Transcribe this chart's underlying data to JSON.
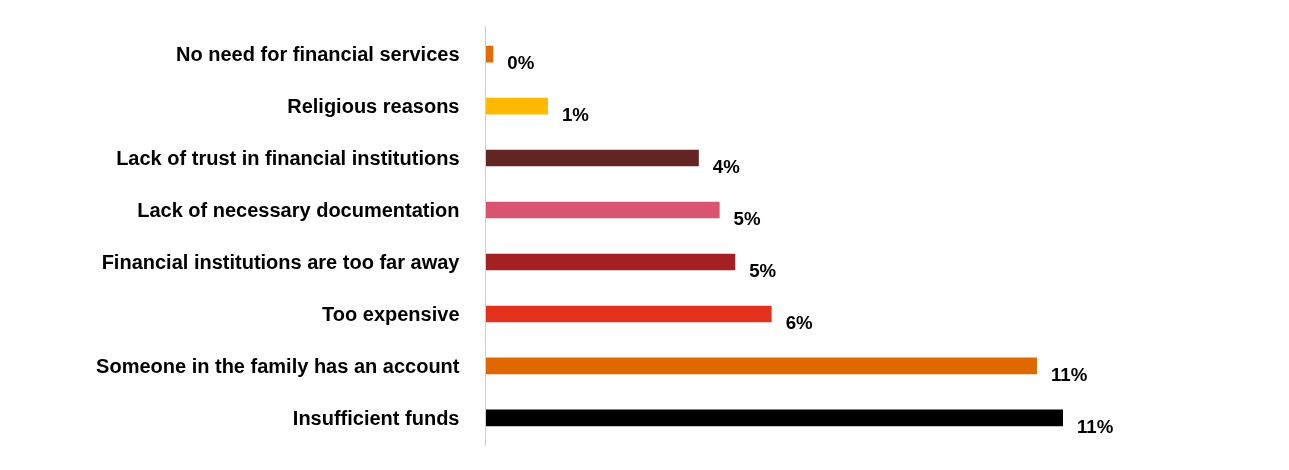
{
  "chart_data": {
    "type": "bar",
    "orientation": "horizontal",
    "categories": [
      "No need for financial services",
      "Religious reasons",
      "Lack of trust in financial institutions",
      "Lack of necessary documentation",
      "Financial institutions are too far away",
      "Too expensive",
      "Someone in the family has an account",
      "Insufficient funds"
    ],
    "values": [
      0.15,
      1.2,
      4.1,
      4.5,
      4.8,
      5.5,
      10.6,
      11.1
    ],
    "colors": [
      "#e36c09",
      "#ffb900",
      "#632523",
      "#d9546e",
      "#a31f22",
      "#e2321e",
      "#e06800",
      "#000000"
    ],
    "value_labels": [
      "0%",
      "1%",
      "4%",
      "5%",
      "5%",
      "6%",
      "11%",
      "11%"
    ],
    "grid": false
  }
}
